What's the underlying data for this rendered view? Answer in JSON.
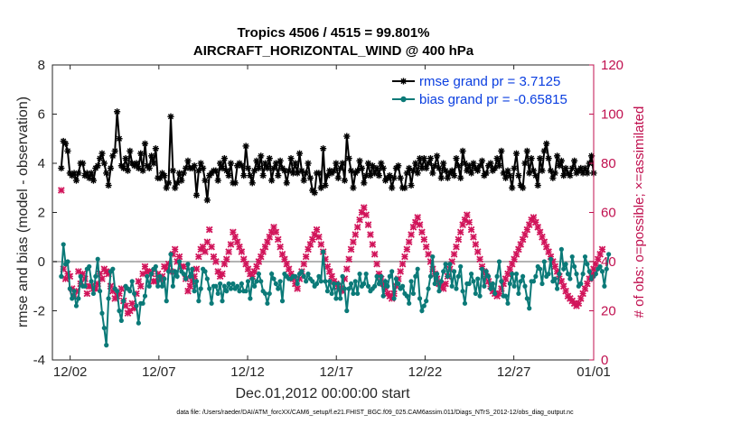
{
  "chart_data": {
    "type": "line",
    "title": "Tropics 4506 / 4515 = 99.801%",
    "subtitle": "AIRCRAFT_HORIZONTAL_WIND @ 400 hPa",
    "xlabel": "Dec.01,2012 00:00:00 start",
    "ylabel": "rmse and bias (model - observation)",
    "ylabel_right": "# of obs: o=possible; ×=assimilated",
    "footer": "data file: /Users/raeder/DAI/ATM_forcXX/CAM6_setup/f.e21.FHIST_BGC.f09_025.CAM6assim.011/Diags_NTrS_2012-12/obs_diag_output.nc",
    "xlim": [
      0.5,
      31.0
    ],
    "ylim": [
      -4,
      8
    ],
    "ylim_right": [
      0,
      120
    ],
    "xticks": [
      1.5,
      6.5,
      11.5,
      16.5,
      21.5,
      26.5,
      31.0
    ],
    "xtick_labels": [
      "12/02",
      "12/07",
      "12/12",
      "12/17",
      "12/22",
      "12/27",
      "01/01"
    ],
    "yticks": [
      -4,
      -2,
      0,
      2,
      4,
      6,
      8
    ],
    "yticks_right": [
      0,
      20,
      40,
      60,
      80,
      100,
      120
    ],
    "zero_line": 0,
    "legend_position": "top-right",
    "series": [
      {
        "name": "rmse grand pr = 3.7125",
        "color": "#000000",
        "marker": "asterisk",
        "axis": "left",
        "values": [
          3.8,
          4.9,
          4.8,
          4.5,
          3.6,
          3.5,
          3.6,
          3.3,
          3.6,
          4.0,
          4.0,
          3.5,
          3.6,
          3.4,
          3.6,
          3.3,
          3.8,
          3.9,
          4.2,
          4.4,
          4.0,
          3.6,
          3.1,
          3.8,
          4.3,
          4.5,
          6.1,
          5.0,
          3.9,
          3.8,
          4.2,
          3.7,
          4.5,
          4.0,
          3.9,
          4.0,
          3.8,
          4.4,
          3.7,
          4.8,
          3.9,
          3.8,
          4.3,
          4.0,
          4.6,
          3.4,
          3.4,
          3.6,
          3.5,
          3.0,
          3.2,
          5.9,
          3.7,
          3.0,
          3.2,
          3.6,
          3.3,
          3.6,
          3.8,
          4.1,
          3.8,
          3.8,
          3.9,
          2.7,
          3.7,
          4.0,
          3.8,
          3.3,
          2.5,
          3.5,
          3.6,
          3.7,
          3.7,
          3.3,
          4.0,
          3.8,
          4.2,
          3.7,
          3.5,
          4.0,
          3.2,
          3.2,
          3.9,
          4.0,
          3.9,
          3.5,
          4.7,
          3.8,
          3.5,
          3.2,
          3.7,
          4.1,
          3.8,
          4.3,
          3.5,
          4.0,
          3.8,
          4.2,
          3.3,
          3.8,
          4.0,
          3.5,
          4.1,
          3.8,
          3.7,
          3.2,
          3.7,
          4.2,
          3.6,
          4.0,
          3.6,
          4.4,
          3.7,
          3.3,
          3.6,
          4.0,
          3.4,
          2.9,
          2.8,
          3.6,
          3.6,
          3.0,
          4.6,
          3.1,
          3.5,
          3.7,
          3.6,
          3.7,
          4.0,
          3.4,
          3.8,
          4.0,
          3.3,
          5.1,
          4.2,
          3.7,
          3.0,
          3.6,
          3.7,
          4.1,
          3.8,
          3.2,
          3.5,
          4.0,
          3.5,
          3.9,
          3.6,
          3.8,
          3.5,
          4.0,
          3.8,
          3.3,
          3.4,
          3.5,
          3.0,
          3.4,
          3.8,
          3.9,
          3.4,
          3.0,
          3.0,
          3.6,
          3.8,
          3.1,
          3.7,
          4.0,
          3.6,
          4.2,
          3.8,
          4.2,
          3.8,
          4.0,
          4.2,
          3.6,
          3.9,
          4.3,
          3.8,
          3.4,
          4.0,
          3.7,
          3.4,
          3.6,
          3.7,
          3.5,
          4.2,
          3.9,
          3.4,
          4.5,
          4.0,
          3.7,
          3.9,
          3.6,
          4.0,
          3.8,
          3.7,
          3.9,
          4.1,
          3.5,
          3.6,
          3.9,
          4.0,
          3.7,
          3.8,
          4.2,
          3.9,
          4.5,
          3.6,
          3.4,
          3.7,
          3.5,
          3.0,
          3.8,
          4.4,
          3.5,
          3.1,
          3.0,
          4.0,
          4.5,
          3.6,
          4.2,
          3.7,
          3.5,
          3.1,
          4.2,
          3.7,
          4.5,
          4.8,
          4.2,
          3.7,
          3.4,
          3.6,
          4.3,
          3.9,
          4.1,
          3.5,
          3.8,
          3.6,
          3.5,
          3.8,
          4.1,
          3.6,
          3.7,
          3.8,
          3.6,
          3.8,
          3.6,
          4.0,
          4.3,
          3.6
        ]
      },
      {
        "name": "bias grand pr = -0.65815",
        "color": "#0b7a78",
        "marker": "circle",
        "axis": "left",
        "values": [
          -0.6,
          0.7,
          -0.1,
          0.0,
          -1.1,
          -1.5,
          -1.2,
          -1.8,
          -1.5,
          -0.6,
          -1.0,
          -1.0,
          -0.3,
          -0.2,
          -0.8,
          -1.3,
          -0.6,
          0.1,
          -1.2,
          -2.1,
          -2.7,
          -3.4,
          -1.5,
          -0.4,
          -0.3,
          -1.1,
          -1.2,
          -2.0,
          -2.4,
          -1.6,
          -1.0,
          -1.1,
          -1.2,
          -0.8,
          -1.3,
          -1.8,
          -2.5,
          -1.7,
          -1.7,
          -1.4,
          -0.6,
          -1.0,
          -0.5,
          -0.3,
          -0.2,
          -1.0,
          -0.6,
          -1.0,
          -0.7,
          -1.6,
          -0.4,
          0.3,
          -1.0,
          -0.4,
          -0.6,
          0.0,
          -0.4,
          -0.5,
          -0.7,
          -0.1,
          -0.6,
          -0.3,
          -1.2,
          -0.8,
          -1.6,
          -1.1,
          -0.3,
          -0.4,
          -0.7,
          -1.1,
          -1.7,
          -1.0,
          -1.0,
          -1.3,
          -0.9,
          -1.6,
          -1.0,
          -1.2,
          -0.9,
          -1.1,
          -0.9,
          -1.1,
          -1.0,
          -1.2,
          -0.9,
          -1.2,
          -1.2,
          -0.8,
          -1.5,
          -0.7,
          -1.0,
          -0.8,
          -0.5,
          -0.8,
          -1.2,
          -1.3,
          -1.7,
          -1.3,
          -0.5,
          -0.7,
          -0.9,
          -1.1,
          -0.8,
          -1.6,
          -0.5,
          -0.6,
          -0.7,
          -0.7,
          -0.6,
          -0.6,
          -0.9,
          -0.5,
          -0.4,
          -0.6,
          -0.8,
          -0.5,
          -0.7,
          -0.8,
          -1.0,
          -0.9,
          -0.6,
          -0.8,
          0.4,
          -0.8,
          -1.2,
          -0.8,
          -1.3,
          -0.9,
          -1.5,
          -0.9,
          -1.5,
          -0.6,
          -1.1,
          -2.0,
          -1.1,
          -0.9,
          -1.3,
          -0.8,
          -1.3,
          -0.5,
          -1.0,
          -0.9,
          -0.5,
          -1.0,
          -1.2,
          -1.1,
          -1.0,
          -0.6,
          -0.9,
          -0.6,
          -1.4,
          -0.8,
          -1.0,
          -0.6,
          -0.4,
          -1.5,
          -0.7,
          -0.9,
          -1.1,
          -1.0,
          -1.3,
          -1.4,
          -1.7,
          -0.8,
          -1.3,
          -0.6,
          -0.3,
          -1.5,
          -2.0,
          -1.8,
          -1.6,
          -1.1,
          -0.6,
          0.2,
          -0.9,
          -0.5,
          -1.2,
          -0.8,
          -0.4,
          -0.1,
          -0.6,
          -0.1,
          -1.0,
          -0.4,
          -1.1,
          -0.6,
          -0.2,
          -1.2,
          -1.7,
          -0.9,
          -0.9,
          -0.5,
          -0.8,
          -1.3,
          -0.7,
          -1.4,
          -0.3,
          -1.0,
          -0.4,
          -0.6,
          -1.1,
          -0.9,
          -1.3,
          -0.6,
          0.0,
          -0.8,
          -1.4,
          -1.4,
          -1.7,
          -0.9,
          -0.5,
          -1.0,
          -0.5,
          -1.3,
          -0.8,
          -0.6,
          -1.0,
          -1.5,
          -1.9,
          -0.8,
          -0.8,
          -0.6,
          -0.2,
          -0.3,
          -0.9,
          0.0,
          -0.6,
          -0.5,
          0.1,
          -0.8,
          -0.7,
          -1.1,
          -0.5,
          0.5,
          -0.3,
          -0.1,
          -0.5,
          -0.7,
          0.2,
          -0.2,
          -0.5,
          -1.0,
          -0.9,
          -0.5,
          0.2,
          -0.1,
          -0.4,
          -0.7,
          -0.6,
          -0.5,
          -0.3,
          -0.2,
          -0.4,
          -1.0,
          -0.3,
          0.3
        ]
      },
      {
        "name": "# of obs assimilated",
        "color": "#d1145a",
        "marker": "x",
        "axis": "right",
        "values": [
          69,
          37,
          33,
          35,
          34,
          29,
          26,
          28,
          36,
          31,
          35,
          33,
          27,
          30,
          30,
          29,
          29,
          31,
          35,
          33,
          37,
          36,
          35,
          30,
          28,
          25,
          26,
          27,
          29,
          24,
          22,
          19,
          20,
          23,
          21,
          27,
          32,
          30,
          35,
          38,
          36,
          36,
          35,
          32,
          32,
          35,
          33,
          34,
          38,
          37,
          39,
          36,
          43,
          45,
          40,
          42,
          38,
          38,
          33,
          28,
          30,
          32,
          34,
          37,
          42,
          45,
          46,
          44,
          48,
          53,
          46,
          42,
          40,
          36,
          34,
          35,
          39,
          41,
          44,
          47,
          52,
          50,
          48,
          46,
          44,
          41,
          39,
          37,
          35,
          34,
          36,
          38,
          40,
          42,
          44,
          46,
          48,
          50,
          52,
          54,
          52,
          49,
          46,
          43,
          41,
          39,
          37,
          35,
          33,
          31,
          29,
          33,
          36,
          39,
          42,
          45,
          47,
          49,
          51,
          53,
          50,
          47,
          44,
          41,
          38,
          36,
          34,
          32,
          31,
          30,
          29,
          28,
          33,
          37,
          41,
          45,
          48,
          51,
          54,
          57,
          60,
          62,
          59,
          55,
          51,
          47,
          43,
          39,
          35,
          33,
          31,
          29,
          27,
          26,
          25,
          27,
          30,
          33,
          36,
          39,
          42,
          45,
          48,
          51,
          54,
          56,
          58,
          55,
          52,
          49,
          46,
          43,
          40,
          37,
          35,
          33,
          31,
          30,
          29,
          31,
          34,
          37,
          40,
          43,
          46,
          49,
          52,
          55,
          57,
          59,
          56,
          53,
          50,
          47,
          44,
          41,
          38,
          36,
          34,
          32,
          30,
          28,
          27,
          26,
          27,
          29,
          31,
          33,
          35,
          37,
          39,
          41,
          43,
          45,
          47,
          49,
          51,
          53,
          55,
          57,
          58,
          56,
          54,
          52,
          50,
          48,
          46,
          44,
          42,
          40,
          38,
          36,
          34,
          32,
          30,
          28,
          26,
          25,
          24,
          23,
          22,
          23,
          25,
          27,
          29,
          31,
          33,
          35,
          37,
          39,
          41,
          43,
          45
        ]
      }
    ]
  }
}
